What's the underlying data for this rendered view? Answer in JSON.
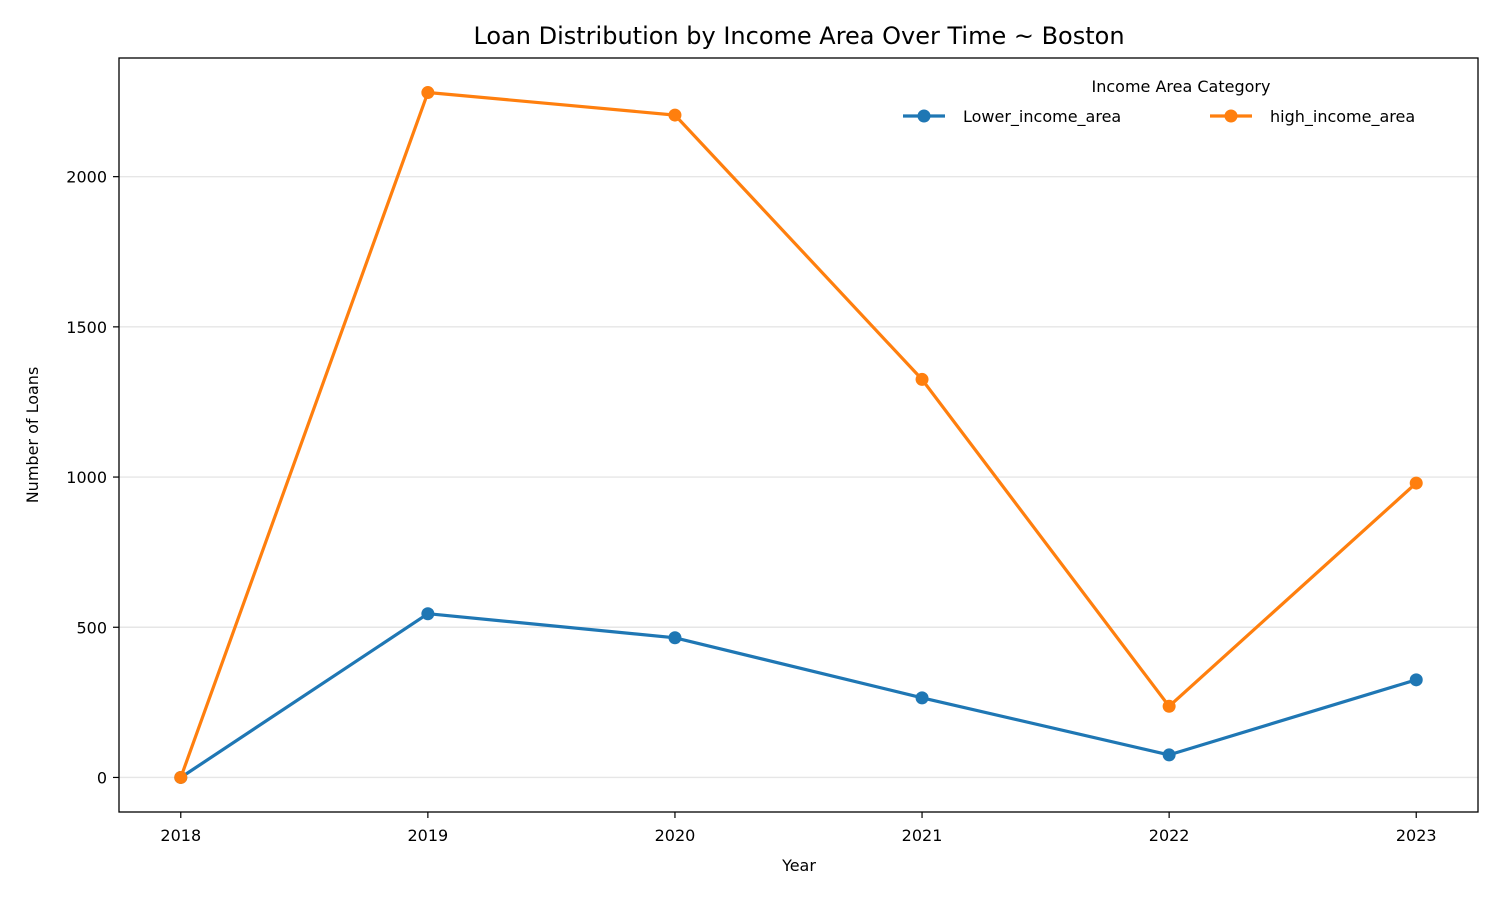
{
  "chart_data": {
    "type": "line",
    "title": "Loan Distribution by Income Area Over Time ~ Boston",
    "xlabel": "Year",
    "ylabel": "Number of Loans",
    "x": [
      2018,
      2019,
      2020,
      2021,
      2022,
      2023
    ],
    "x_tick_labels": [
      "2018",
      "2019",
      "2020",
      "2021",
      "2022",
      "2023"
    ],
    "y_ticks": [
      0,
      500,
      1000,
      1500,
      2000
    ],
    "y_tick_labels": [
      "0",
      "500",
      "1000",
      "1500",
      "2000"
    ],
    "xlim": [
      2017.75,
      2023.25
    ],
    "ylim": [
      -115,
      2395
    ],
    "grid": "horizontal",
    "legend": {
      "title": "Income Area Category",
      "placement": "top-right",
      "columns": 2
    },
    "series": [
      {
        "name": "Lower_income_area",
        "color": "#1f77b4",
        "values": [
          0,
          545,
          465,
          265,
          75,
          325
        ]
      },
      {
        "name": "high_income_area",
        "color": "#ff7f0e",
        "values": [
          0,
          2280,
          2205,
          1325,
          237,
          980
        ]
      }
    ]
  }
}
